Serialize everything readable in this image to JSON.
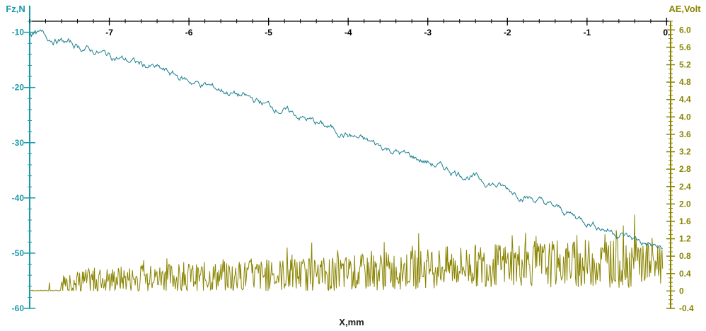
{
  "chart_data": {
    "type": "line",
    "title": "",
    "xlabel": "X,mm",
    "y_left_label": "Fz,N",
    "y_right_label": "AE,Volt",
    "xlim": [
      -8.0,
      0.05
    ],
    "ylim_left": [
      -60,
      -8
    ],
    "ylim_right": [
      -0.4,
      6.2
    ],
    "x_ticks": [
      -7,
      -6,
      -5,
      -4,
      -3,
      -2,
      -1,
      0
    ],
    "x_tick_labels": [
      "-7",
      "-6",
      "-5",
      "-4",
      "-3",
      "-2",
      "-1",
      "0."
    ],
    "y_left_ticks": [
      -10,
      -20,
      -30,
      -40,
      -50,
      -60
    ],
    "y_left_tick_labels": [
      "-10",
      "-20",
      "-30",
      "-40",
      "-50",
      "-60"
    ],
    "y_right_ticks": [
      6.0,
      5.6,
      5.2,
      4.8,
      4.4,
      4.0,
      3.6,
      3.2,
      2.8,
      2.4,
      2.0,
      1.6,
      1.2,
      0.8,
      0.4,
      0,
      -0.4
    ],
    "y_right_tick_labels": [
      "6.0",
      "5.6",
      "5.2",
      "4.8",
      "4.4",
      "4.0",
      "3.6",
      "3.2",
      "2.8",
      "2.4",
      "2.0",
      "1.6",
      "1.2",
      "0.8",
      "0.4",
      "0",
      "-0.4"
    ],
    "grid": false,
    "colors": {
      "fz": "#1a7f8e",
      "ae": "#8a8400",
      "left_axis": "#1a9aa8",
      "right_axis": "#8a8400"
    },
    "series": [
      {
        "axis": "left",
        "x": [
          -8.0,
          -7.6,
          -7.2,
          -6.8,
          -6.4,
          -6.0,
          -5.6,
          -5.2,
          -4.8,
          -4.4,
          -4.0,
          -3.6,
          -3.2,
          -2.8,
          -2.4,
          -2.0,
          -1.6,
          -1.2,
          -0.8,
          -0.4,
          -0.05
        ],
        "values": [
          -10,
          -11.6,
          -13.4,
          -15.0,
          -16.6,
          -18.8,
          -20.4,
          -22.2,
          -24.2,
          -26.4,
          -28.6,
          -30.6,
          -32.6,
          -34.6,
          -36.4,
          -38.4,
          -40.6,
          -43.0,
          -45.4,
          -47.5,
          -49.4
        ]
      },
      {
        "axis": "right",
        "x": [
          -8.0,
          -7.6,
          -7.2,
          -6.8,
          -6.4,
          -6.0,
          -5.6,
          -5.2,
          -4.8,
          -4.4,
          -4.0,
          -3.6,
          -3.2,
          -2.8,
          -2.4,
          -2.0,
          -1.6,
          -1.2,
          -0.8,
          -0.4,
          -0.05
        ],
        "values": [
          0.05,
          0.15,
          0.25,
          0.28,
          0.3,
          0.32,
          0.33,
          0.35,
          0.37,
          0.38,
          0.4,
          0.45,
          0.5,
          0.55,
          0.58,
          0.6,
          0.62,
          0.63,
          0.64,
          0.65,
          0.66
        ]
      }
    ]
  }
}
